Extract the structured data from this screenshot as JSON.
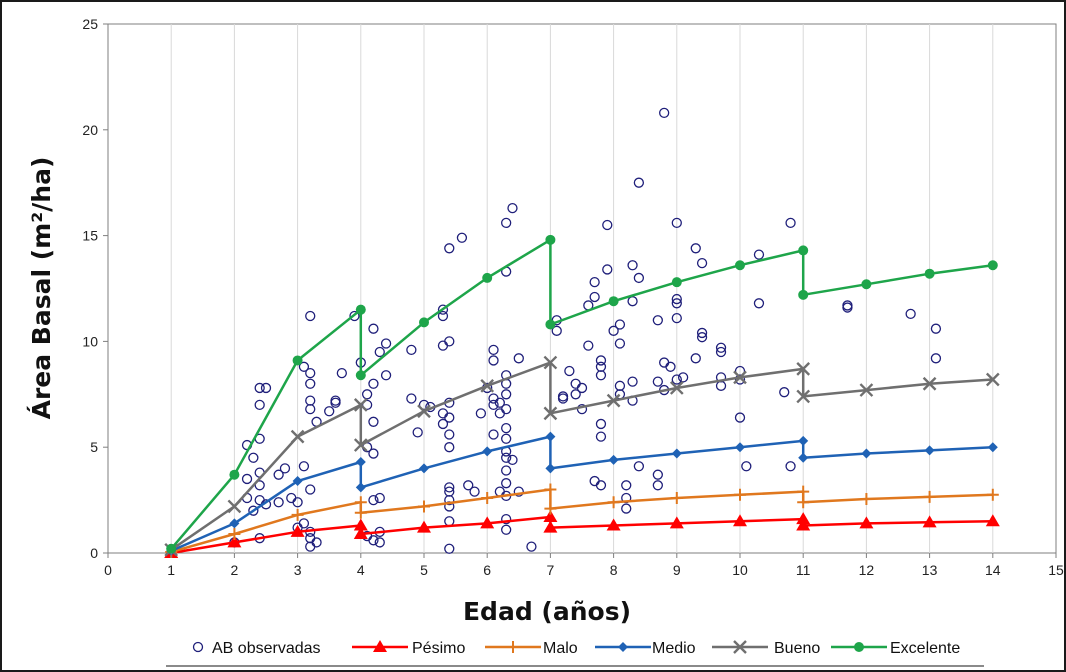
{
  "chart_data": {
    "type": "scatter",
    "xlabel": "Edad (años)",
    "ylabel": "Área Basal (m²/ha)",
    "xlim": [
      0,
      15
    ],
    "ylim": [
      0,
      25
    ],
    "x_ticks": [
      0,
      1,
      2,
      3,
      4,
      5,
      6,
      7,
      8,
      9,
      10,
      11,
      12,
      13,
      14,
      15
    ],
    "y_ticks": [
      0,
      5,
      10,
      15,
      20,
      25
    ],
    "grid": "vertical",
    "legend_position": "bottom",
    "observed": {
      "name": "AB observadas",
      "color": "#1f1f7a",
      "marker": "open-circle",
      "points": [
        [
          2.2,
          5.1
        ],
        [
          2.4,
          7.8
        ],
        [
          2.5,
          7.8
        ],
        [
          2.4,
          7.0
        ],
        [
          2.4,
          5.4
        ],
        [
          2.3,
          4.5
        ],
        [
          2.4,
          3.8
        ],
        [
          2.2,
          3.5
        ],
        [
          2.4,
          3.2
        ],
        [
          2.2,
          2.6
        ],
        [
          2.4,
          2.5
        ],
        [
          2.5,
          2.3
        ],
        [
          2.3,
          2.0
        ],
        [
          2.0,
          0.5
        ],
        [
          2.4,
          0.7
        ],
        [
          2.7,
          3.7
        ],
        [
          2.8,
          4.0
        ],
        [
          2.7,
          2.4
        ],
        [
          2.9,
          2.6
        ],
        [
          3.0,
          2.4
        ],
        [
          3.1,
          4.1
        ],
        [
          3.2,
          11.2
        ],
        [
          3.2,
          8.5
        ],
        [
          3.2,
          8.0
        ],
        [
          3.1,
          8.8
        ],
        [
          3.2,
          7.2
        ],
        [
          3.2,
          6.8
        ],
        [
          3.3,
          6.2
        ],
        [
          3.2,
          3.0
        ],
        [
          3.1,
          1.4
        ],
        [
          3.2,
          1.0
        ],
        [
          3.2,
          0.7
        ],
        [
          3.3,
          0.5
        ],
        [
          3.2,
          0.3
        ],
        [
          3.0,
          1.2
        ],
        [
          3.5,
          6.7
        ],
        [
          3.6,
          7.1
        ],
        [
          3.6,
          7.2
        ],
        [
          3.7,
          8.5
        ],
        [
          3.9,
          11.2
        ],
        [
          4.0,
          9.0
        ],
        [
          4.2,
          10.6
        ],
        [
          4.3,
          9.5
        ],
        [
          4.2,
          8.0
        ],
        [
          4.1,
          7.5
        ],
        [
          4.1,
          7.0
        ],
        [
          4.2,
          6.2
        ],
        [
          4.1,
          5.0
        ],
        [
          4.2,
          4.7
        ],
        [
          4.3,
          2.6
        ],
        [
          4.2,
          2.5
        ],
        [
          4.1,
          0.8
        ],
        [
          4.2,
          0.6
        ],
        [
          4.3,
          0.5
        ],
        [
          4.4,
          9.9
        ],
        [
          4.4,
          8.4
        ],
        [
          4.3,
          1.0
        ],
        [
          4.8,
          9.6
        ],
        [
          4.8,
          7.3
        ],
        [
          4.9,
          5.7
        ],
        [
          5.0,
          7.0
        ],
        [
          5.1,
          6.9
        ],
        [
          5.3,
          11.5
        ],
        [
          5.3,
          11.2
        ],
        [
          5.3,
          9.8
        ],
        [
          5.3,
          6.6
        ],
        [
          5.3,
          6.1
        ],
        [
          5.4,
          14.4
        ],
        [
          5.4,
          10.0
        ],
        [
          5.4,
          7.1
        ],
        [
          5.4,
          6.4
        ],
        [
          5.4,
          5.6
        ],
        [
          5.4,
          5.0
        ],
        [
          5.4,
          3.1
        ],
        [
          5.4,
          2.9
        ],
        [
          5.4,
          2.5
        ],
        [
          5.4,
          2.2
        ],
        [
          5.4,
          1.5
        ],
        [
          5.4,
          0.2
        ],
        [
          5.6,
          14.9
        ],
        [
          5.7,
          3.2
        ],
        [
          5.8,
          2.9
        ],
        [
          5.9,
          6.6
        ],
        [
          6.0,
          7.8
        ],
        [
          6.1,
          9.6
        ],
        [
          6.1,
          9.1
        ],
        [
          6.1,
          7.3
        ],
        [
          6.1,
          7.0
        ],
        [
          6.2,
          6.6
        ],
        [
          6.1,
          5.6
        ],
        [
          6.2,
          2.9
        ],
        [
          6.3,
          15.6
        ],
        [
          6.3,
          13.3
        ],
        [
          6.3,
          8.4
        ],
        [
          6.3,
          8.0
        ],
        [
          6.3,
          7.5
        ],
        [
          6.2,
          7.1
        ],
        [
          6.3,
          6.8
        ],
        [
          6.3,
          5.9
        ],
        [
          6.3,
          5.4
        ],
        [
          6.3,
          4.8
        ],
        [
          6.3,
          4.5
        ],
        [
          6.3,
          3.9
        ],
        [
          6.3,
          3.3
        ],
        [
          6.3,
          2.7
        ],
        [
          6.3,
          1.6
        ],
        [
          6.3,
          1.1
        ],
        [
          6.4,
          16.3
        ],
        [
          6.4,
          4.4
        ],
        [
          6.5,
          9.2
        ],
        [
          6.5,
          2.9
        ],
        [
          6.7,
          0.3
        ],
        [
          7.1,
          11.0
        ],
        [
          7.1,
          10.5
        ],
        [
          7.2,
          7.4
        ],
        [
          7.2,
          7.3
        ],
        [
          7.3,
          8.6
        ],
        [
          7.4,
          8.0
        ],
        [
          7.4,
          7.5
        ],
        [
          7.5,
          7.8
        ],
        [
          7.5,
          6.8
        ],
        [
          7.6,
          11.7
        ],
        [
          7.6,
          9.8
        ],
        [
          7.7,
          12.1
        ],
        [
          7.7,
          12.8
        ],
        [
          7.8,
          9.1
        ],
        [
          7.8,
          8.4
        ],
        [
          7.8,
          8.8
        ],
        [
          7.8,
          6.1
        ],
        [
          7.8,
          5.5
        ],
        [
          7.7,
          3.4
        ],
        [
          7.8,
          3.2
        ],
        [
          7.9,
          15.5
        ],
        [
          7.9,
          13.4
        ],
        [
          8.0,
          10.5
        ],
        [
          8.1,
          10.8
        ],
        [
          8.1,
          9.9
        ],
        [
          8.1,
          7.9
        ],
        [
          8.1,
          7.5
        ],
        [
          8.2,
          3.2
        ],
        [
          8.2,
          2.6
        ],
        [
          8.2,
          2.1
        ],
        [
          8.3,
          11.9
        ],
        [
          8.3,
          13.6
        ],
        [
          8.3,
          8.1
        ],
        [
          8.3,
          7.2
        ],
        [
          8.4,
          17.5
        ],
        [
          8.4,
          13.0
        ],
        [
          8.4,
          4.1
        ],
        [
          8.7,
          11.0
        ],
        [
          8.7,
          8.1
        ],
        [
          8.7,
          3.7
        ],
        [
          8.7,
          3.2
        ],
        [
          8.8,
          20.8
        ],
        [
          8.8,
          9.0
        ],
        [
          8.8,
          7.7
        ],
        [
          8.9,
          8.8
        ],
        [
          9.0,
          15.6
        ],
        [
          9.0,
          12.0
        ],
        [
          9.0,
          11.8
        ],
        [
          9.0,
          11.1
        ],
        [
          9.0,
          8.2
        ],
        [
          9.1,
          8.3
        ],
        [
          9.3,
          14.4
        ],
        [
          9.3,
          9.2
        ],
        [
          9.4,
          13.7
        ],
        [
          9.4,
          10.4
        ],
        [
          9.4,
          10.2
        ],
        [
          9.7,
          9.7
        ],
        [
          9.7,
          9.5
        ],
        [
          9.7,
          8.3
        ],
        [
          9.7,
          7.9
        ],
        [
          10.0,
          8.6
        ],
        [
          10.0,
          8.2
        ],
        [
          10.0,
          6.4
        ],
        [
          10.1,
          4.1
        ],
        [
          10.3,
          14.1
        ],
        [
          10.3,
          11.8
        ],
        [
          10.7,
          7.6
        ],
        [
          10.8,
          15.6
        ],
        [
          10.8,
          4.1
        ],
        [
          11.7,
          11.6
        ],
        [
          11.7,
          11.7
        ],
        [
          12.7,
          11.3
        ],
        [
          13.1,
          10.6
        ],
        [
          13.1,
          9.2
        ]
      ]
    },
    "series": [
      {
        "name": "Pésimo",
        "color": "#ff0000",
        "marker": "triangle",
        "segments": [
          {
            "x": [
              1,
              2,
              3,
              4
            ],
            "y": [
              0.0,
              0.5,
              1.0,
              1.3
            ]
          },
          {
            "x": [
              4,
              5,
              6,
              7
            ],
            "y": [
              0.9,
              1.2,
              1.4,
              1.7
            ]
          },
          {
            "x": [
              7,
              8,
              9,
              10,
              11
            ],
            "y": [
              1.2,
              1.3,
              1.4,
              1.5,
              1.6
            ]
          },
          {
            "x": [
              11,
              12,
              13,
              14
            ],
            "y": [
              1.3,
              1.4,
              1.45,
              1.5
            ]
          }
        ]
      },
      {
        "name": "Malo",
        "color": "#e0781e",
        "marker": "plus",
        "segments": [
          {
            "x": [
              1,
              2,
              3,
              4
            ],
            "y": [
              0.05,
              0.9,
              1.8,
              2.4
            ]
          },
          {
            "x": [
              4,
              5,
              6,
              7
            ],
            "y": [
              1.9,
              2.2,
              2.6,
              3.0
            ]
          },
          {
            "x": [
              7,
              8,
              9,
              10,
              11
            ],
            "y": [
              2.1,
              2.4,
              2.6,
              2.75,
              2.9
            ]
          },
          {
            "x": [
              11,
              12,
              13,
              14
            ],
            "y": [
              2.4,
              2.55,
              2.65,
              2.75
            ]
          }
        ]
      },
      {
        "name": "Medio",
        "color": "#1f62b5",
        "marker": "diamond",
        "segments": [
          {
            "x": [
              1,
              2,
              3,
              4
            ],
            "y": [
              0.1,
              1.4,
              3.4,
              4.3
            ]
          },
          {
            "x": [
              4,
              5,
              6,
              7
            ],
            "y": [
              3.1,
              4.0,
              4.8,
              5.5
            ]
          },
          {
            "x": [
              7,
              8,
              9,
              10,
              11
            ],
            "y": [
              4.0,
              4.4,
              4.7,
              5.0,
              5.3
            ]
          },
          {
            "x": [
              11,
              12,
              13,
              14
            ],
            "y": [
              4.5,
              4.7,
              4.85,
              5.0
            ]
          }
        ]
      },
      {
        "name": "Bueno",
        "color": "#6f6f6f",
        "marker": "x",
        "segments": [
          {
            "x": [
              1,
              2,
              3,
              4
            ],
            "y": [
              0.15,
              2.2,
              5.5,
              7.0
            ]
          },
          {
            "x": [
              4,
              5,
              6,
              7
            ],
            "y": [
              5.1,
              6.7,
              7.9,
              9.0
            ]
          },
          {
            "x": [
              7,
              8,
              9,
              10,
              11
            ],
            "y": [
              6.6,
              7.2,
              7.8,
              8.3,
              8.7
            ]
          },
          {
            "x": [
              11,
              12,
              13,
              14
            ],
            "y": [
              7.4,
              7.7,
              8.0,
              8.2
            ]
          }
        ]
      },
      {
        "name": "Excelente",
        "color": "#1ea54a",
        "marker": "circle",
        "segments": [
          {
            "x": [
              1,
              2,
              3,
              4
            ],
            "y": [
              0.2,
              3.7,
              9.1,
              11.5
            ]
          },
          {
            "x": [
              4,
              5,
              6,
              7
            ],
            "y": [
              8.4,
              10.9,
              13.0,
              14.8
            ]
          },
          {
            "x": [
              7,
              8,
              9,
              10,
              11
            ],
            "y": [
              10.8,
              11.9,
              12.8,
              13.6,
              14.3
            ]
          },
          {
            "x": [
              11,
              12,
              13,
              14
            ],
            "y": [
              12.2,
              12.7,
              13.2,
              13.6
            ]
          }
        ]
      }
    ]
  }
}
